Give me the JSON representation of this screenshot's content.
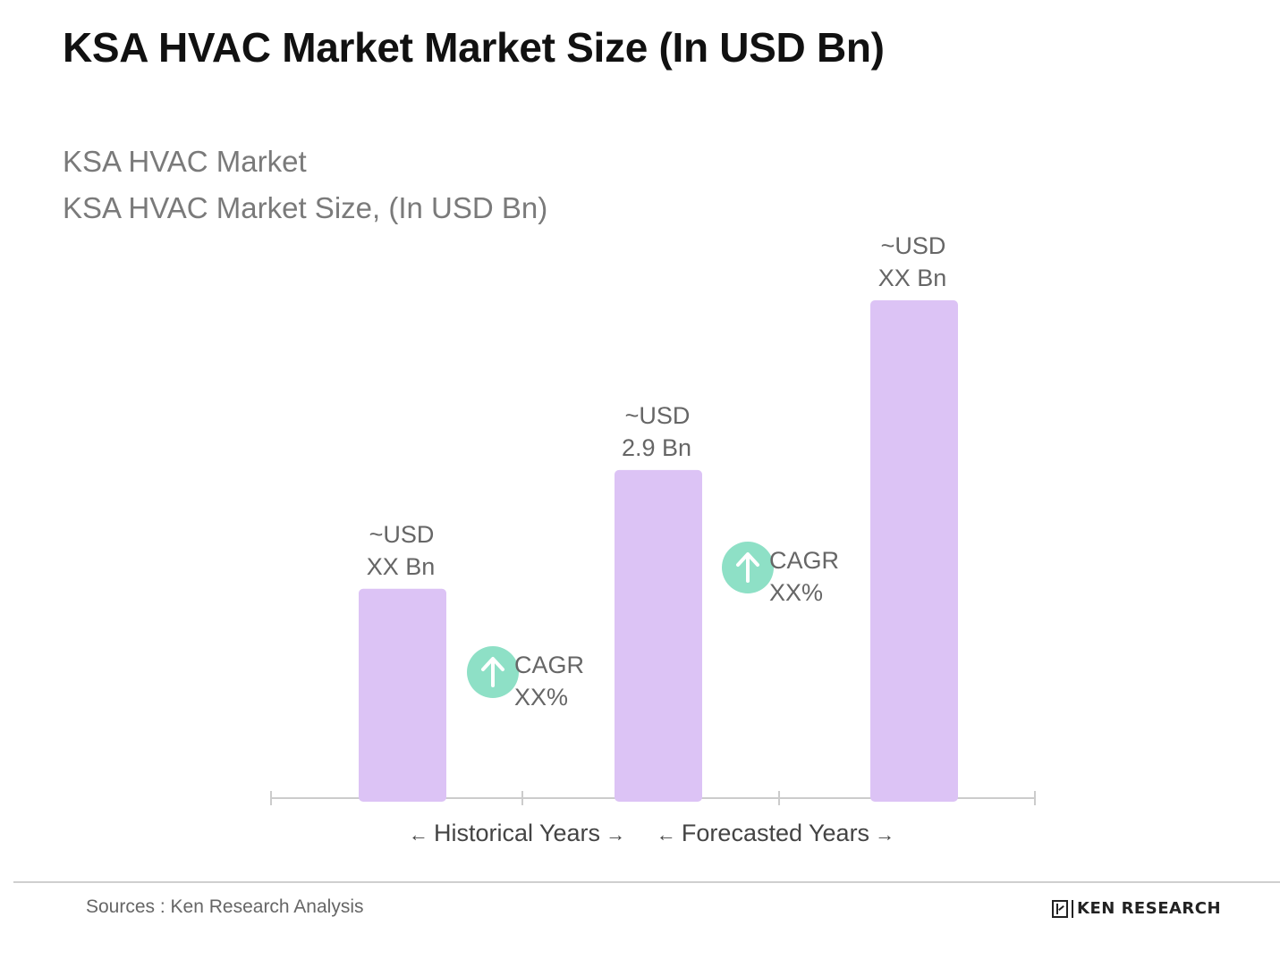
{
  "title": "KSA HVAC Market Market Size (In USD Bn)",
  "subtitle_1": "KSA HVAC Market",
  "subtitle_2": "KSA HVAC Market Size, (In USD Bn)",
  "colors": {
    "bar": "#dcc3f5",
    "cagr_circle": "#8ee0c6",
    "axis": "#cccccc",
    "label_text": "#666666",
    "period_text": "#444444"
  },
  "chart_data": {
    "type": "bar",
    "categories": [
      "",
      "",
      ""
    ],
    "values": [
      1.85,
      2.9,
      4.4
    ],
    "value_labels": [
      [
        "~USD",
        "XX Bn"
      ],
      [
        "~USD",
        "2.9 Bn"
      ],
      [
        "~USD",
        "XX Bn"
      ]
    ],
    "ylim": [
      0,
      4.4
    ],
    "grid": false,
    "annotations": [
      {
        "icon": "arrow-up-icon",
        "line1": "CAGR",
        "line2": "XX%"
      },
      {
        "icon": "arrow-up-icon",
        "line1": "CAGR",
        "line2": "XX%"
      }
    ],
    "periods": [
      {
        "label": "Historical Years",
        "left_arrow": "←",
        "right_arrow": "→"
      },
      {
        "label": "Forecasted Years",
        "left_arrow": "←",
        "right_arrow": "→"
      }
    ]
  },
  "footer": {
    "source": "Sources : Ken Research Analysis",
    "brand": "KEN RESEARCH"
  }
}
